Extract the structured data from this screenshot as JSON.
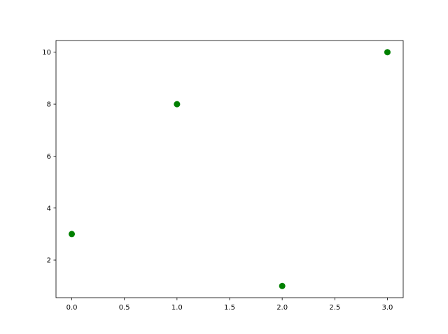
{
  "chart_data": {
    "type": "scatter",
    "title": "",
    "xlabel": "",
    "ylabel": "",
    "x": [
      0,
      1,
      2,
      3
    ],
    "y": [
      3,
      8,
      1,
      10
    ],
    "xlim": [
      -0.15,
      3.15
    ],
    "ylim": [
      0.55,
      10.45
    ],
    "xticks": [
      "0.0",
      "0.5",
      "1.0",
      "1.5",
      "2.0",
      "2.5",
      "3.0"
    ],
    "yticks": [
      "2",
      "4",
      "6",
      "8",
      "10"
    ],
    "marker_color": "#008000",
    "grid": false
  }
}
